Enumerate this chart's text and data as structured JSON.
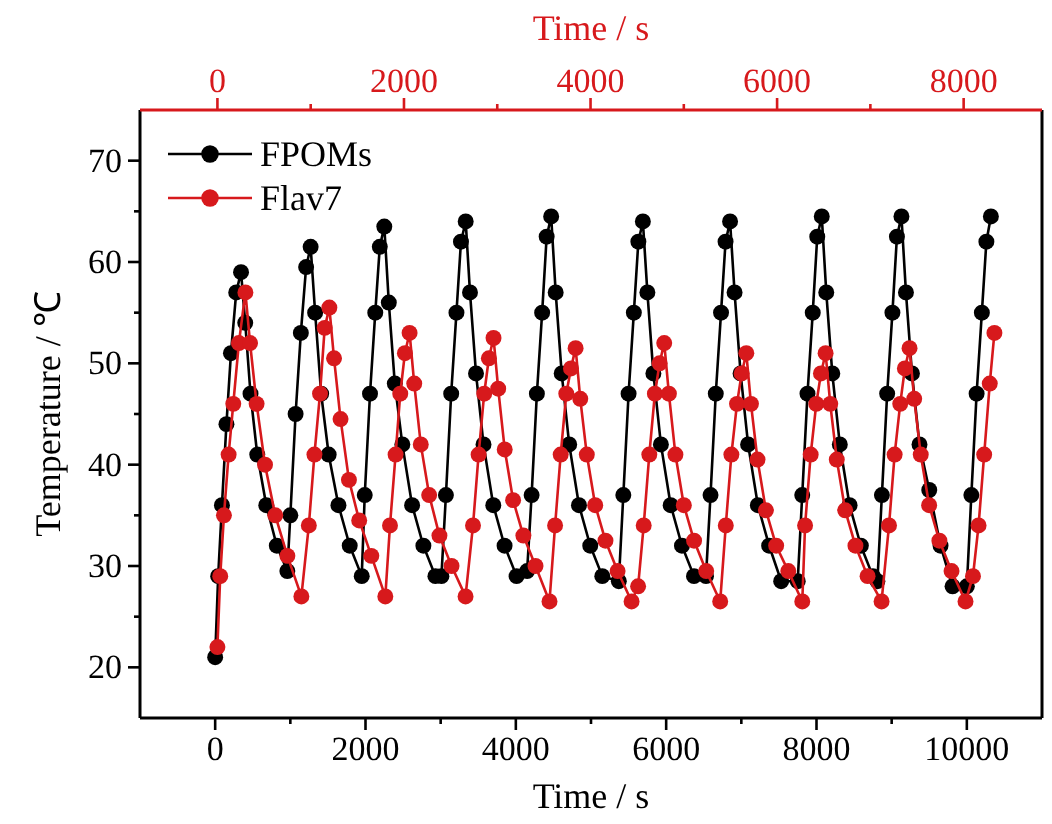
{
  "chart_data": {
    "type": "line",
    "xlabel": "Time / s",
    "x2label": "Time / s",
    "ylabel": "Temperature / ℃",
    "xlim": [
      -1000,
      11000
    ],
    "xticks": [
      0,
      {
        "value": 1000,
        "label": null
      },
      2000,
      {
        "value": 3000,
        "label": null
      },
      4000,
      {
        "value": 5000,
        "label": null
      },
      6000,
      {
        "value": 7000,
        "label": null
      },
      8000,
      {
        "value": 9000,
        "label": null
      },
      10000
    ],
    "x2lim": [
      -830,
      8840
    ],
    "x2ticks": [
      0,
      {
        "value": 1000,
        "label": null
      },
      2000,
      {
        "value": 3000,
        "label": null
      },
      4000,
      {
        "value": 5000,
        "label": null
      },
      6000,
      {
        "value": 7000,
        "label": null
      },
      8000
    ],
    "ylim": [
      15,
      75
    ],
    "yticks": [
      20,
      {
        "value": 25,
        "label": null
      },
      30,
      {
        "value": 35,
        "label": null
      },
      40,
      {
        "value": 45,
        "label": null
      },
      50,
      {
        "value": 55,
        "label": null
      },
      60,
      {
        "value": 65,
        "label": null
      },
      70
    ],
    "grid": false,
    "legend": "top left",
    "marker": "circle",
    "line_style": "solid",
    "series": [
      {
        "name": "FPOMs",
        "color": "#000000",
        "x": [
          0,
          40,
          90,
          150,
          210,
          280,
          344,
          400,
          470,
          560,
          680,
          820,
          960,
          1000,
          1070,
          1140,
          1210,
          1270,
          1330,
          1410,
          1510,
          1640,
          1790,
          1950,
          1990,
          2060,
          2130,
          2190,
          2250,
          2310,
          2390,
          2490,
          2620,
          2770,
          2930,
          3010,
          3070,
          3140,
          3210,
          3270,
          3333,
          3390,
          3470,
          3570,
          3700,
          3850,
          4010,
          4150,
          4210,
          4280,
          4350,
          4410,
          4470,
          4530,
          4610,
          4710,
          4840,
          4990,
          5150,
          5370,
          5430,
          5500,
          5570,
          5630,
          5690,
          5750,
          5830,
          5930,
          6060,
          6210,
          6370,
          6530,
          6590,
          6660,
          6730,
          6790,
          6850,
          6910,
          6990,
          7090,
          7220,
          7370,
          7530,
          7750,
          7810,
          7880,
          7950,
          8010,
          8070,
          8130,
          8210,
          8310,
          8440,
          8590,
          8750,
          8810,
          8870,
          8940,
          9010,
          9070,
          9130,
          9190,
          9270,
          9370,
          9500,
          9650,
          9810,
          10000,
          10060,
          10130,
          10200,
          10260,
          10320
        ],
        "values": [
          21,
          29,
          36,
          44,
          51,
          57,
          59,
          54,
          47,
          41,
          36,
          32,
          29.5,
          35,
          45,
          53,
          59.5,
          61.5,
          55,
          47,
          41,
          36,
          32,
          29,
          37,
          47,
          55,
          61.5,
          63.5,
          56,
          48,
          42,
          36,
          32,
          29,
          29,
          37,
          47,
          55,
          62,
          64,
          57,
          49,
          42,
          36,
          32,
          29,
          29.5,
          37,
          47,
          55,
          62.5,
          64.5,
          57,
          49,
          42,
          36,
          32,
          29,
          28.5,
          37,
          47,
          55,
          62,
          64,
          57,
          49,
          42,
          36,
          32,
          29,
          29,
          37,
          47,
          55,
          62,
          64,
          57,
          49,
          42,
          36,
          32,
          28.5,
          28.5,
          37,
          47,
          55,
          62.5,
          64.5,
          57,
          49,
          42,
          36,
          32,
          29,
          28.5,
          37,
          47,
          55,
          62.5,
          64.5,
          57,
          49,
          42,
          37.5,
          32,
          28,
          28,
          37,
          47,
          55,
          62,
          64.5
        ]
      },
      {
        "name": "Flav7",
        "color": "#d7191c",
        "axis": "x2",
        "x": [
          0,
          30,
          70,
          120,
          170,
          230,
          300,
          350,
          420,
          510,
          620,
          750,
          900,
          980,
          1040,
          1100,
          1150,
          1200,
          1250,
          1320,
          1410,
          1520,
          1650,
          1800,
          1850,
          1910,
          1960,
          2010,
          2060,
          2110,
          2180,
          2270,
          2380,
          2510,
          2660,
          2740,
          2800,
          2860,
          2910,
          2960,
          3010,
          3080,
          3170,
          3280,
          3410,
          3560,
          3620,
          3680,
          3740,
          3790,
          3840,
          3890,
          3960,
          4050,
          4160,
          4290,
          4440,
          4510,
          4570,
          4630,
          4690,
          4740,
          4790,
          4840,
          4910,
          5000,
          5110,
          5240,
          5390,
          5450,
          5510,
          5570,
          5620,
          5670,
          5720,
          5790,
          5880,
          5990,
          6120,
          6270,
          6300,
          6360,
          6420,
          6470,
          6520,
          6570,
          6640,
          6730,
          6840,
          6970,
          7120,
          7200,
          7260,
          7320,
          7370,
          7420,
          7470,
          7540,
          7630,
          7740,
          7870,
          8020,
          8100,
          8160,
          8220,
          8280,
          8330
        ],
        "values": [
          22,
          29,
          35,
          41,
          46,
          52,
          57,
          52,
          46,
          40,
          35,
          31,
          27,
          34,
          41,
          47,
          53.5,
          55.5,
          50.5,
          44.5,
          38.5,
          34.5,
          31,
          27,
          34,
          41,
          47,
          51,
          53,
          48,
          42,
          37,
          33,
          30,
          27,
          34,
          41,
          47,
          50.5,
          52.5,
          47.5,
          41.5,
          36.5,
          33,
          30,
          26.5,
          34,
          41,
          47,
          49.5,
          51.5,
          46.5,
          41,
          36,
          32.5,
          29.5,
          26.5,
          28,
          34,
          41,
          47,
          50,
          52,
          47,
          41,
          36,
          32.5,
          29.5,
          26.5,
          34,
          41,
          46,
          49,
          51,
          46,
          40.5,
          35.5,
          32,
          29.5,
          26.5,
          34,
          41,
          46,
          49,
          51,
          46,
          40.5,
          35.5,
          32,
          29,
          26.5,
          34,
          41,
          46,
          49.5,
          51.5,
          46.5,
          41,
          36,
          32.5,
          29.5,
          26.5,
          29,
          34,
          41,
          48,
          53
        ]
      }
    ]
  }
}
